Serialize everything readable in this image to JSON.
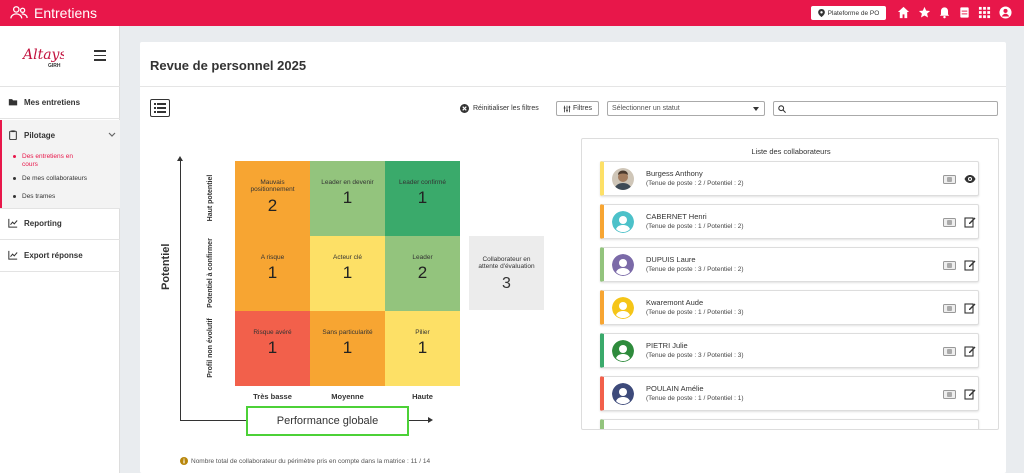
{
  "app": {
    "title": "Entretiens",
    "platform_button": "Plateforme de PO"
  },
  "topbar_icons": [
    "home-icon",
    "star-icon",
    "bell-icon",
    "document-icon",
    "apps-grid-icon",
    "account-icon"
  ],
  "sidebar": {
    "logo_text": "Altays",
    "logo_sub": "GIRH",
    "items": [
      {
        "label": "Mes entretiens",
        "icon": "folder-icon"
      },
      {
        "label": "Pilotage",
        "icon": "clipboard-icon"
      },
      {
        "label": "Reporting",
        "icon": "chart-icon"
      },
      {
        "label": "Export réponse",
        "icon": "chart-icon"
      }
    ],
    "pilotage_sub": [
      {
        "label": "Des entretiens en cours",
        "active": true
      },
      {
        "label": "De mes collaborateurs",
        "active": false
      },
      {
        "label": "Des trames",
        "active": false
      }
    ]
  },
  "page": {
    "title": "Revue de personnel 2025",
    "reset_filters": "Réinitialiser les filtres",
    "filters_button": "Filtres",
    "status_placeholder": "Sélectionner un statut",
    "search_value": ""
  },
  "matrix": {
    "y_axis_title": "Potentiel",
    "x_axis_title": "Performance globale",
    "row_labels": [
      "Haut potentiel",
      "Potentiel à confirmer",
      "Profil non évolutif"
    ],
    "col_labels": [
      "Très basse",
      "Moyenne",
      "Haute"
    ],
    "cells": [
      [
        {
          "label": "Mauvais positionnement",
          "count": "2",
          "color": "#f7a532"
        },
        {
          "label": "Leader en devenir",
          "count": "1",
          "color": "#93c47d"
        },
        {
          "label": "Leader confirmé",
          "count": "1",
          "color": "#3aaa6b"
        }
      ],
      [
        {
          "label": "A risque",
          "count": "1",
          "color": "#f7a532"
        },
        {
          "label": "Acteur clé",
          "count": "1",
          "color": "#fde066"
        },
        {
          "label": "Leader",
          "count": "2",
          "color": "#93c47d"
        }
      ],
      [
        {
          "label": "Risque avéré",
          "count": "1",
          "color": "#f2604b"
        },
        {
          "label": "Sans particularité",
          "count": "1",
          "color": "#f7a532"
        },
        {
          "label": "Pilier",
          "count": "1",
          "color": "#fde066"
        }
      ]
    ],
    "pending": {
      "label": "Collaborateur en attente d'évaluation",
      "count": "3"
    },
    "footnote": "Nombre total de collaborateur du périmètre pris en compte dans la matrice : 11 / 14"
  },
  "collaborators_panel": {
    "title": "Liste des collaborateurs",
    "items": [
      {
        "name": "Burgess Anthony",
        "detail": "(Tenue de poste : 2 / Potentiel : 2)",
        "accent": "#fde066",
        "avatar": "photo",
        "action": "eye-icon"
      },
      {
        "name": "CABERNET Henri",
        "detail": "(Tenue de poste : 1 / Potentiel : 2)",
        "accent": "#f7a532",
        "avatar": "teal",
        "action": "edit-icon"
      },
      {
        "name": "DUPUIS Laure",
        "detail": "(Tenue de poste : 3 / Potentiel : 2)",
        "accent": "#93c47d",
        "avatar": "purple",
        "action": "edit-icon"
      },
      {
        "name": "Kwaremont Aude",
        "detail": "(Tenue de poste : 1 / Potentiel : 3)",
        "accent": "#f7a532",
        "avatar": "yellow",
        "action": "edit-icon"
      },
      {
        "name": "PIETRI Julie",
        "detail": "(Tenue de poste : 3 / Potentiel : 3)",
        "accent": "#3aaa6b",
        "avatar": "green",
        "action": "edit-icon"
      },
      {
        "name": "POULAIN Amélie",
        "detail": "(Tenue de poste : 1 / Potentiel : 1)",
        "accent": "#f2604b",
        "avatar": "navy",
        "action": "edit-icon"
      }
    ]
  }
}
